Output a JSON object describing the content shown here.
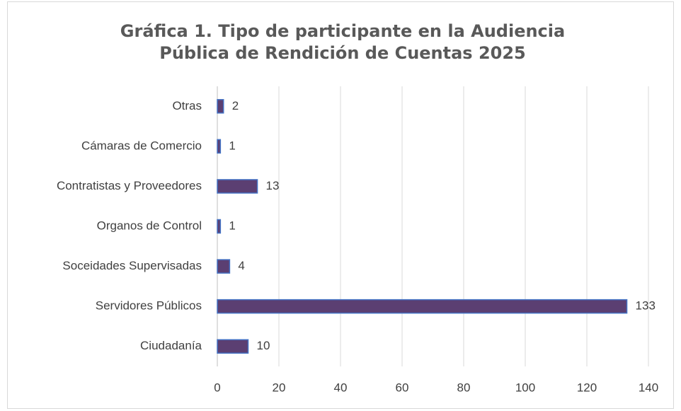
{
  "chart_data": {
    "type": "barh",
    "title": [
      "Gráfica 1. Tipo de participante en la Audiencia",
      "Pública de Rendición de Cuentas 2025"
    ],
    "categories": [
      "Otras",
      "Cámaras de Comercio",
      "Contratistas y Proveedores",
      "Organos de Control",
      "Soceidades Supervisadas",
      "Servidores Públicos",
      "Ciudadanía"
    ],
    "values": [
      2,
      1,
      13,
      1,
      4,
      133,
      10
    ],
    "color": "#5b3f72",
    "edge_color": "#4472c4",
    "xlim": [
      0,
      140
    ],
    "xticks": [
      0,
      20,
      40,
      60,
      80,
      100,
      120,
      140
    ],
    "grid": true
  }
}
